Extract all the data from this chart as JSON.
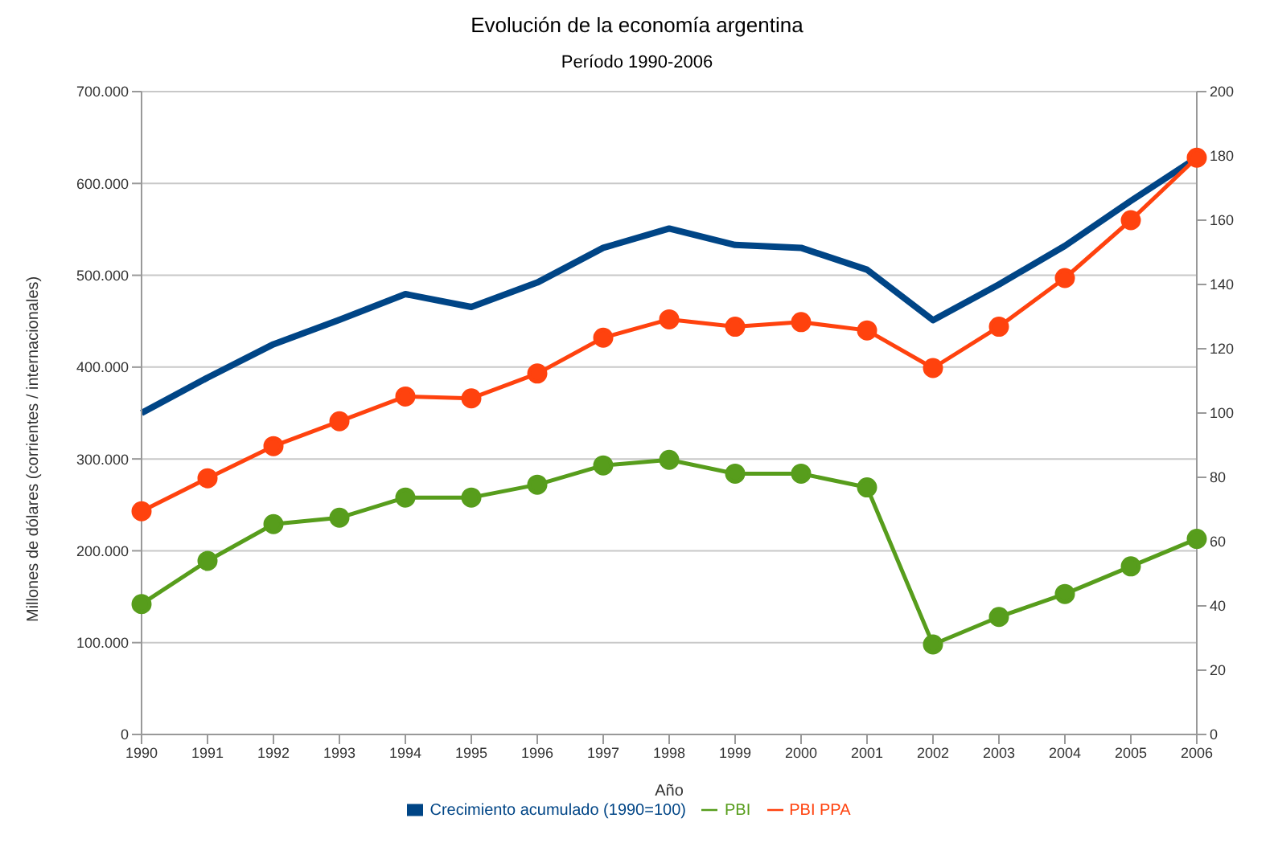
{
  "chart_data": {
    "type": "line",
    "title": "Evolución de la economía argentina",
    "subtitle": "Período 1990-2006",
    "xlabel": "Año",
    "ylabel": "Millones de dólares (corrientes / internacionales)",
    "categories": [
      "1990",
      "1991",
      "1992",
      "1993",
      "1994",
      "1995",
      "1996",
      "1997",
      "1998",
      "1999",
      "2000",
      "2001",
      "2002",
      "2003",
      "2004",
      "2005",
      "2006"
    ],
    "series": [
      {
        "name": "Crecimiento acumulado (1990=100)",
        "color": "#004586",
        "axis": "y2",
        "marker": "none",
        "values": [
          100,
          111,
          121.4,
          129,
          137,
          133,
          140.6,
          151.4,
          157.4,
          152.3,
          151.4,
          144.6,
          128.9,
          140,
          152,
          166,
          179.4
        ]
      },
      {
        "name": "PBI PPA",
        "color": "#ff420e",
        "values": [
          243000,
          279000,
          314000,
          341000,
          368000,
          366000,
          393000,
          432000,
          452000,
          444000,
          449000,
          440000,
          399000,
          444000,
          497000,
          560000,
          628000
        ]
      },
      {
        "name": "PBI",
        "color": "#579d1c",
        "values": [
          142000,
          189000,
          229000,
          236000,
          258000,
          258000,
          272000,
          293000,
          299000,
          284000,
          284000,
          269000,
          98000,
          128000,
          153000,
          183000,
          213000
        ]
      }
    ],
    "ylim": [
      0,
      700000
    ],
    "yticks": [
      {
        "value": 0,
        "label": "0"
      },
      {
        "value": 100000,
        "label": "100.000"
      },
      {
        "value": 200000,
        "label": "200.000"
      },
      {
        "value": 300000,
        "label": "300.000"
      },
      {
        "value": 400000,
        "label": "400.000"
      },
      {
        "value": 500000,
        "label": "500.000"
      },
      {
        "value": 600000,
        "label": "600.000"
      },
      {
        "value": 700000,
        "label": "700.000"
      }
    ],
    "y2lim": [
      0,
      200
    ],
    "y2ticks": [
      0,
      20,
      40,
      60,
      80,
      100,
      120,
      140,
      160,
      180,
      200
    ],
    "grid": "y",
    "legend": "bottom",
    "marker": "circle",
    "line_style": "solid"
  }
}
